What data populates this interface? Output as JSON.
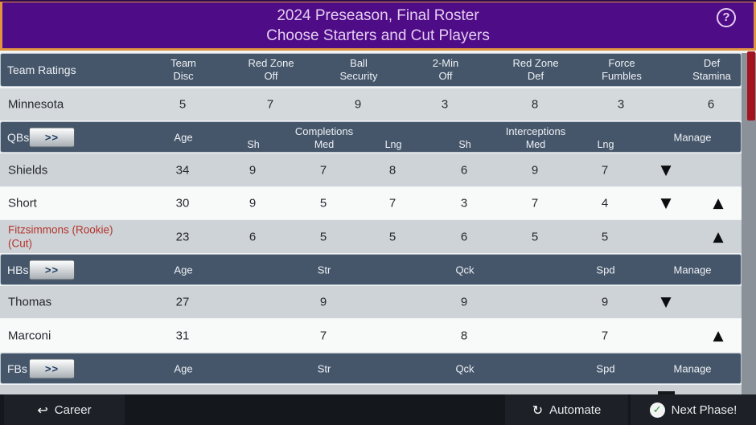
{
  "icons": {
    "help": "?",
    "expand": ">>",
    "demote": "▼",
    "promote": "▲",
    "career": "↩",
    "automate": "↻",
    "check": "✓"
  },
  "header": {
    "title_line1": "2024 Preseason, Final Roster",
    "title_line2": "Choose Starters and Cut Players"
  },
  "ratings": {
    "label": "Team Ratings",
    "columns": [
      {
        "line1": "Team",
        "line2": "Disc"
      },
      {
        "line1": "Red Zone",
        "line2": "Off"
      },
      {
        "line1": "Ball",
        "line2": "Security"
      },
      {
        "line1": "2-Min",
        "line2": "Off"
      },
      {
        "line1": "Red Zone",
        "line2": "Def"
      },
      {
        "line1": "Force",
        "line2": "Fumbles"
      },
      {
        "line1": "Def",
        "line2": "Stamina"
      }
    ],
    "team_name": "Minnesota",
    "values": [
      "5",
      "7",
      "9",
      "3",
      "8",
      "3",
      "6"
    ]
  },
  "qb_section": {
    "label": "QBs",
    "age_label": "Age",
    "completions_label": "Completions",
    "interceptions_label": "Interceptions",
    "sub_labels": [
      "Sh",
      "Med",
      "Lng"
    ],
    "manage_label": "Manage",
    "players": [
      {
        "name": "Shields",
        "age": "34",
        "stats": [
          "9",
          "7",
          "8",
          "6",
          "9",
          "7"
        ],
        "can_demote": true,
        "can_promote": false,
        "status": "active"
      },
      {
        "name": "Short",
        "age": "30",
        "stats": [
          "9",
          "5",
          "7",
          "3",
          "7",
          "4"
        ],
        "can_demote": true,
        "can_promote": true,
        "status": "active"
      },
      {
        "name": "Fitzsimmons (Rookie) (Cut)",
        "age": "23",
        "stats": [
          "6",
          "5",
          "5",
          "6",
          "5",
          "5"
        ],
        "can_demote": false,
        "can_promote": true,
        "status": "cut"
      }
    ]
  },
  "hb_section": {
    "label": "HBs",
    "age_label": "Age",
    "columns": [
      "Str",
      "Qck",
      "Spd"
    ],
    "manage_label": "Manage",
    "players": [
      {
        "name": "Thomas",
        "age": "27",
        "stats": [
          "9",
          "9",
          "9"
        ],
        "can_demote": true,
        "can_promote": false,
        "status": "active"
      },
      {
        "name": "Marconi",
        "age": "31",
        "stats": [
          "7",
          "8",
          "7"
        ],
        "can_demote": false,
        "can_promote": true,
        "status": "active"
      }
    ]
  },
  "fb_section": {
    "label": "FBs",
    "age_label": "Age",
    "columns": [
      "Str",
      "Qck",
      "Spd"
    ],
    "manage_label": "Manage",
    "players": []
  },
  "footer": {
    "career": "Career",
    "automate": "Automate",
    "next_phase": "Next Phase!"
  }
}
